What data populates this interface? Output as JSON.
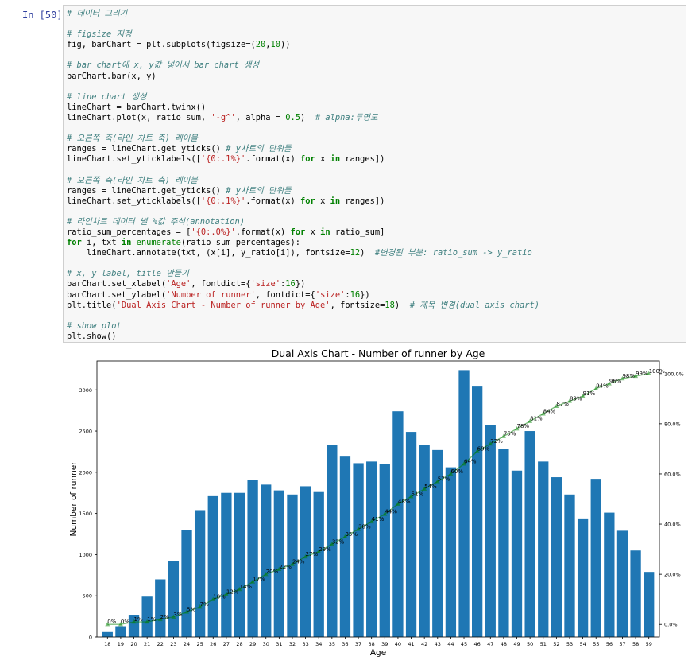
{
  "prompt": "In [50]:",
  "code_lines": [
    [
      {
        "t": "# 데이터 그리기",
        "c": "c"
      }
    ],
    [],
    [
      {
        "t": "# figsize 지정",
        "c": "c"
      }
    ],
    [
      {
        "t": "fig, barChart = plt.subplots(figsize=(",
        "c": ""
      },
      {
        "t": "20",
        "c": "n"
      },
      {
        "t": ",",
        "c": ""
      },
      {
        "t": "10",
        "c": "n"
      },
      {
        "t": "))",
        "c": ""
      }
    ],
    [],
    [
      {
        "t": "# bar chart에 x, y값 넣어서 bar chart 생성",
        "c": "c"
      }
    ],
    [
      {
        "t": "barChart.bar(x, y)",
        "c": ""
      }
    ],
    [],
    [
      {
        "t": "# line chart 생성",
        "c": "c"
      }
    ],
    [
      {
        "t": "lineChart = barChart.twinx()",
        "c": ""
      }
    ],
    [
      {
        "t": "lineChart.plot(x, ratio_sum, ",
        "c": ""
      },
      {
        "t": "'-g^'",
        "c": "s"
      },
      {
        "t": ", alpha = ",
        "c": ""
      },
      {
        "t": "0.5",
        "c": "n"
      },
      {
        "t": ")  ",
        "c": ""
      },
      {
        "t": "# alpha:투명도",
        "c": "c"
      }
    ],
    [],
    [
      {
        "t": "# 오른쪽 축(라인 차트 축) 레이블",
        "c": "c"
      }
    ],
    [
      {
        "t": "ranges = lineChart.get_yticks() ",
        "c": ""
      },
      {
        "t": "# y차트의 단위들",
        "c": "c"
      }
    ],
    [
      {
        "t": "lineChart.set_yticklabels([",
        "c": ""
      },
      {
        "t": "'{0:.1%}'",
        "c": "s"
      },
      {
        "t": ".format(x) ",
        "c": ""
      },
      {
        "t": "for",
        "c": "kw"
      },
      {
        "t": " x ",
        "c": ""
      },
      {
        "t": "in",
        "c": "kw"
      },
      {
        "t": " ranges])",
        "c": ""
      }
    ],
    [],
    [
      {
        "t": "# 오른쪽 축(라인 차트 축) 레이블",
        "c": "c"
      }
    ],
    [
      {
        "t": "ranges = lineChart.get_yticks() ",
        "c": ""
      },
      {
        "t": "# y차트의 단위들",
        "c": "c"
      }
    ],
    [
      {
        "t": "lineChart.set_yticklabels([",
        "c": ""
      },
      {
        "t": "'{0:.1%}'",
        "c": "s"
      },
      {
        "t": ".format(x) ",
        "c": ""
      },
      {
        "t": "for",
        "c": "kw"
      },
      {
        "t": " x ",
        "c": ""
      },
      {
        "t": "in",
        "c": "kw"
      },
      {
        "t": " ranges])",
        "c": ""
      }
    ],
    [],
    [
      {
        "t": "# 라인차트 데이터 별 %값 주석(annotation)",
        "c": "c"
      }
    ],
    [
      {
        "t": "ratio_sum_percentages = [",
        "c": ""
      },
      {
        "t": "'{0:.0%}'",
        "c": "s"
      },
      {
        "t": ".format(x) ",
        "c": ""
      },
      {
        "t": "for",
        "c": "kw"
      },
      {
        "t": " x ",
        "c": ""
      },
      {
        "t": "in",
        "c": "kw"
      },
      {
        "t": " ratio_sum]",
        "c": ""
      }
    ],
    [
      {
        "t": "for",
        "c": "kw"
      },
      {
        "t": " i, txt ",
        "c": ""
      },
      {
        "t": "in",
        "c": "kw"
      },
      {
        "t": " ",
        "c": ""
      },
      {
        "t": "enumerate",
        "c": "n"
      },
      {
        "t": "(ratio_sum_percentages):",
        "c": ""
      }
    ],
    [
      {
        "t": "    lineChart.annotate(txt, (x[i], y_ratio[i]), fontsize=",
        "c": ""
      },
      {
        "t": "12",
        "c": "n"
      },
      {
        "t": ")  ",
        "c": ""
      },
      {
        "t": "#변경된 부분: ratio_sum -> y_ratio",
        "c": "c"
      }
    ],
    [],
    [
      {
        "t": "# x, y label, title 만들기",
        "c": "c"
      }
    ],
    [
      {
        "t": "barChart.set_xlabel(",
        "c": ""
      },
      {
        "t": "'Age'",
        "c": "s"
      },
      {
        "t": ", fontdict={",
        "c": ""
      },
      {
        "t": "'size'",
        "c": "s"
      },
      {
        "t": ":",
        "c": ""
      },
      {
        "t": "16",
        "c": "n"
      },
      {
        "t": "})",
        "c": ""
      }
    ],
    [
      {
        "t": "barChart.set_ylabel(",
        "c": ""
      },
      {
        "t": "'Number of runner'",
        "c": "s"
      },
      {
        "t": ", fontdict={",
        "c": ""
      },
      {
        "t": "'size'",
        "c": "s"
      },
      {
        "t": ":",
        "c": ""
      },
      {
        "t": "16",
        "c": "n"
      },
      {
        "t": "})",
        "c": ""
      }
    ],
    [
      {
        "t": "plt.title(",
        "c": ""
      },
      {
        "t": "'Dual Axis Chart - Number of runner by Age'",
        "c": "s"
      },
      {
        "t": ", fontsize=",
        "c": ""
      },
      {
        "t": "18",
        "c": "n"
      },
      {
        "t": ")  ",
        "c": ""
      },
      {
        "t": "# 제목 변경(dual axis chart)",
        "c": "c"
      }
    ],
    [],
    [
      {
        "t": "# show plot",
        "c": "c"
      }
    ],
    [
      {
        "t": "plt.show()",
        "c": ""
      }
    ]
  ],
  "chart_data": {
    "type": "bar",
    "title": "Dual Axis Chart - Number of runner by Age",
    "xlabel": "Age",
    "ylabel": "Number of runner",
    "categories": [
      "18",
      "19",
      "20",
      "21",
      "22",
      "23",
      "24",
      "25",
      "26",
      "27",
      "28",
      "29",
      "30",
      "31",
      "32",
      "33",
      "34",
      "35",
      "36",
      "37",
      "38",
      "39",
      "40",
      "41",
      "42",
      "43",
      "44",
      "45",
      "46",
      "47",
      "48",
      "49",
      "50",
      "51",
      "52",
      "53",
      "54",
      "55",
      "56",
      "57",
      "58",
      "59"
    ],
    "series": [
      {
        "values": [
          60,
          130,
          270,
          490,
          700,
          920,
          1300,
          1540,
          1710,
          1750,
          1750,
          1910,
          1850,
          1780,
          1730,
          1830,
          1760,
          2330,
          2190,
          2110,
          2130,
          2100,
          2740,
          2490,
          2330,
          2270,
          2060,
          3240,
          3040,
          2570,
          2280,
          2020,
          2500,
          2130,
          1940,
          1730,
          1430,
          1920,
          1510,
          1290,
          1050,
          790
        ]
      },
      {
        "axis": "right",
        "style": "line",
        "color": "#008000",
        "values": [
          0.0,
          0.0,
          0.01,
          0.01,
          0.02,
          0.03,
          0.05,
          0.07,
          0.1,
          0.12,
          0.14,
          0.17,
          0.2,
          0.22,
          0.24,
          0.27,
          0.29,
          0.32,
          0.35,
          0.38,
          0.41,
          0.44,
          0.48,
          0.51,
          0.54,
          0.57,
          0.6,
          0.64,
          0.69,
          0.72,
          0.75,
          0.78,
          0.81,
          0.84,
          0.87,
          0.89,
          0.91,
          0.94,
          0.96,
          0.98,
          0.99,
          1.0
        ],
        "labels": [
          "0%",
          "0%",
          "1%",
          "1%",
          "2%",
          "3%",
          "5%",
          "7%",
          "10%",
          "12%",
          "14%",
          "17%",
          "20%",
          "22%",
          "24%",
          "27%",
          "29%",
          "32%",
          "35%",
          "38%",
          "41%",
          "44%",
          "48%",
          "51%",
          "54%",
          "57%",
          "60%",
          "64%",
          "69%",
          "72%",
          "75%",
          "78%",
          "81%",
          "84%",
          "87%",
          "89%",
          "91%",
          "94%",
          "96%",
          "98%",
          "99%",
          "100%"
        ]
      }
    ],
    "ylim": [
      0,
      3350
    ],
    "yticks": [
      0,
      500,
      1000,
      1500,
      2000,
      2500,
      3000
    ],
    "y2lim": [
      -0.05,
      1.05
    ],
    "y2ticks": [
      0.0,
      0.2,
      0.4,
      0.6,
      0.8,
      1.0
    ],
    "y2ticklabels": [
      "0.0%",
      "20.0%",
      "40.0%",
      "60.0%",
      "80.0%",
      "100.0%"
    ],
    "bar_color": "#1f77b4",
    "grid": false
  }
}
